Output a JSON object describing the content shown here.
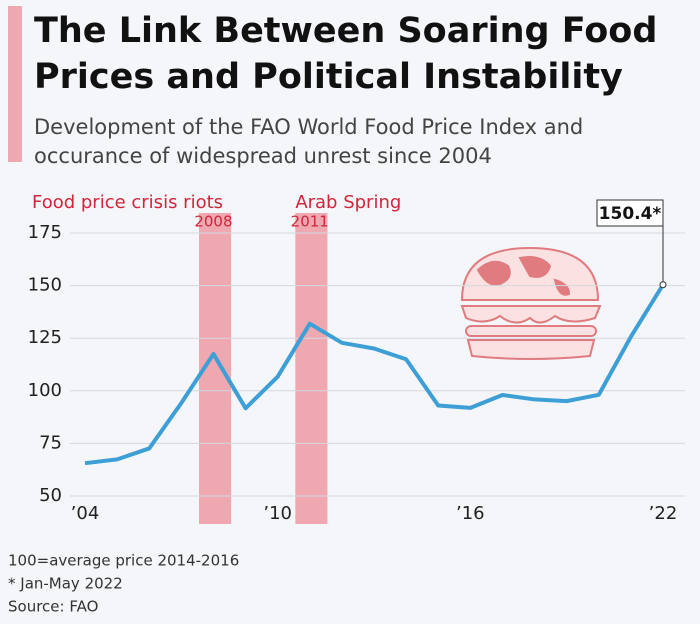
{
  "chart_data": {
    "type": "line",
    "title": [
      "The Link Between Soaring Food",
      "Prices and Political Instability"
    ],
    "subtitle": [
      "Development of the FAO World Food Price Index and",
      "occurance of widespread unrest since 2004"
    ],
    "x": [
      2004,
      2005,
      2006,
      2007,
      2008,
      2009,
      2010,
      2011,
      2012,
      2013,
      2014,
      2015,
      2016,
      2017,
      2018,
      2019,
      2020,
      2021,
      2022
    ],
    "series": [
      {
        "name": "FAO World Food Price Index",
        "color": "#3e9fd6",
        "values": [
          65.6,
          67.4,
          72.6,
          94.2,
          117.5,
          91.7,
          106.7,
          131.9,
          122.8,
          120.1,
          115.0,
          93.0,
          91.9,
          98.0,
          95.9,
          95.1,
          98.1,
          125.7,
          150.4
        ],
        "value_labels": [
          null,
          null,
          null,
          null,
          null,
          null,
          null,
          null,
          null,
          null,
          null,
          null,
          null,
          null,
          null,
          null,
          null,
          null,
          "150.4*"
        ]
      }
    ],
    "bands": [
      {
        "name": "Food price crisis riots",
        "x": 2008
      },
      {
        "name": "Arab Spring",
        "x": 2011
      }
    ],
    "band_color": "#efa7b0",
    "xlim": [
      2004,
      2022
    ],
    "xticks": [
      {
        "value": 2004,
        "label": "’04"
      },
      {
        "value": 2010,
        "label": "’10"
      },
      {
        "value": 2016,
        "label": "’16"
      },
      {
        "value": 2022,
        "label": "’22"
      }
    ],
    "ylim": [
      50,
      175
    ],
    "yticks": [
      50,
      75,
      100,
      125,
      150,
      175
    ],
    "grid": true,
    "notes": [
      "100=average price 2014-2016",
      "* Jan-May 2022",
      "Source: FAO"
    ]
  }
}
